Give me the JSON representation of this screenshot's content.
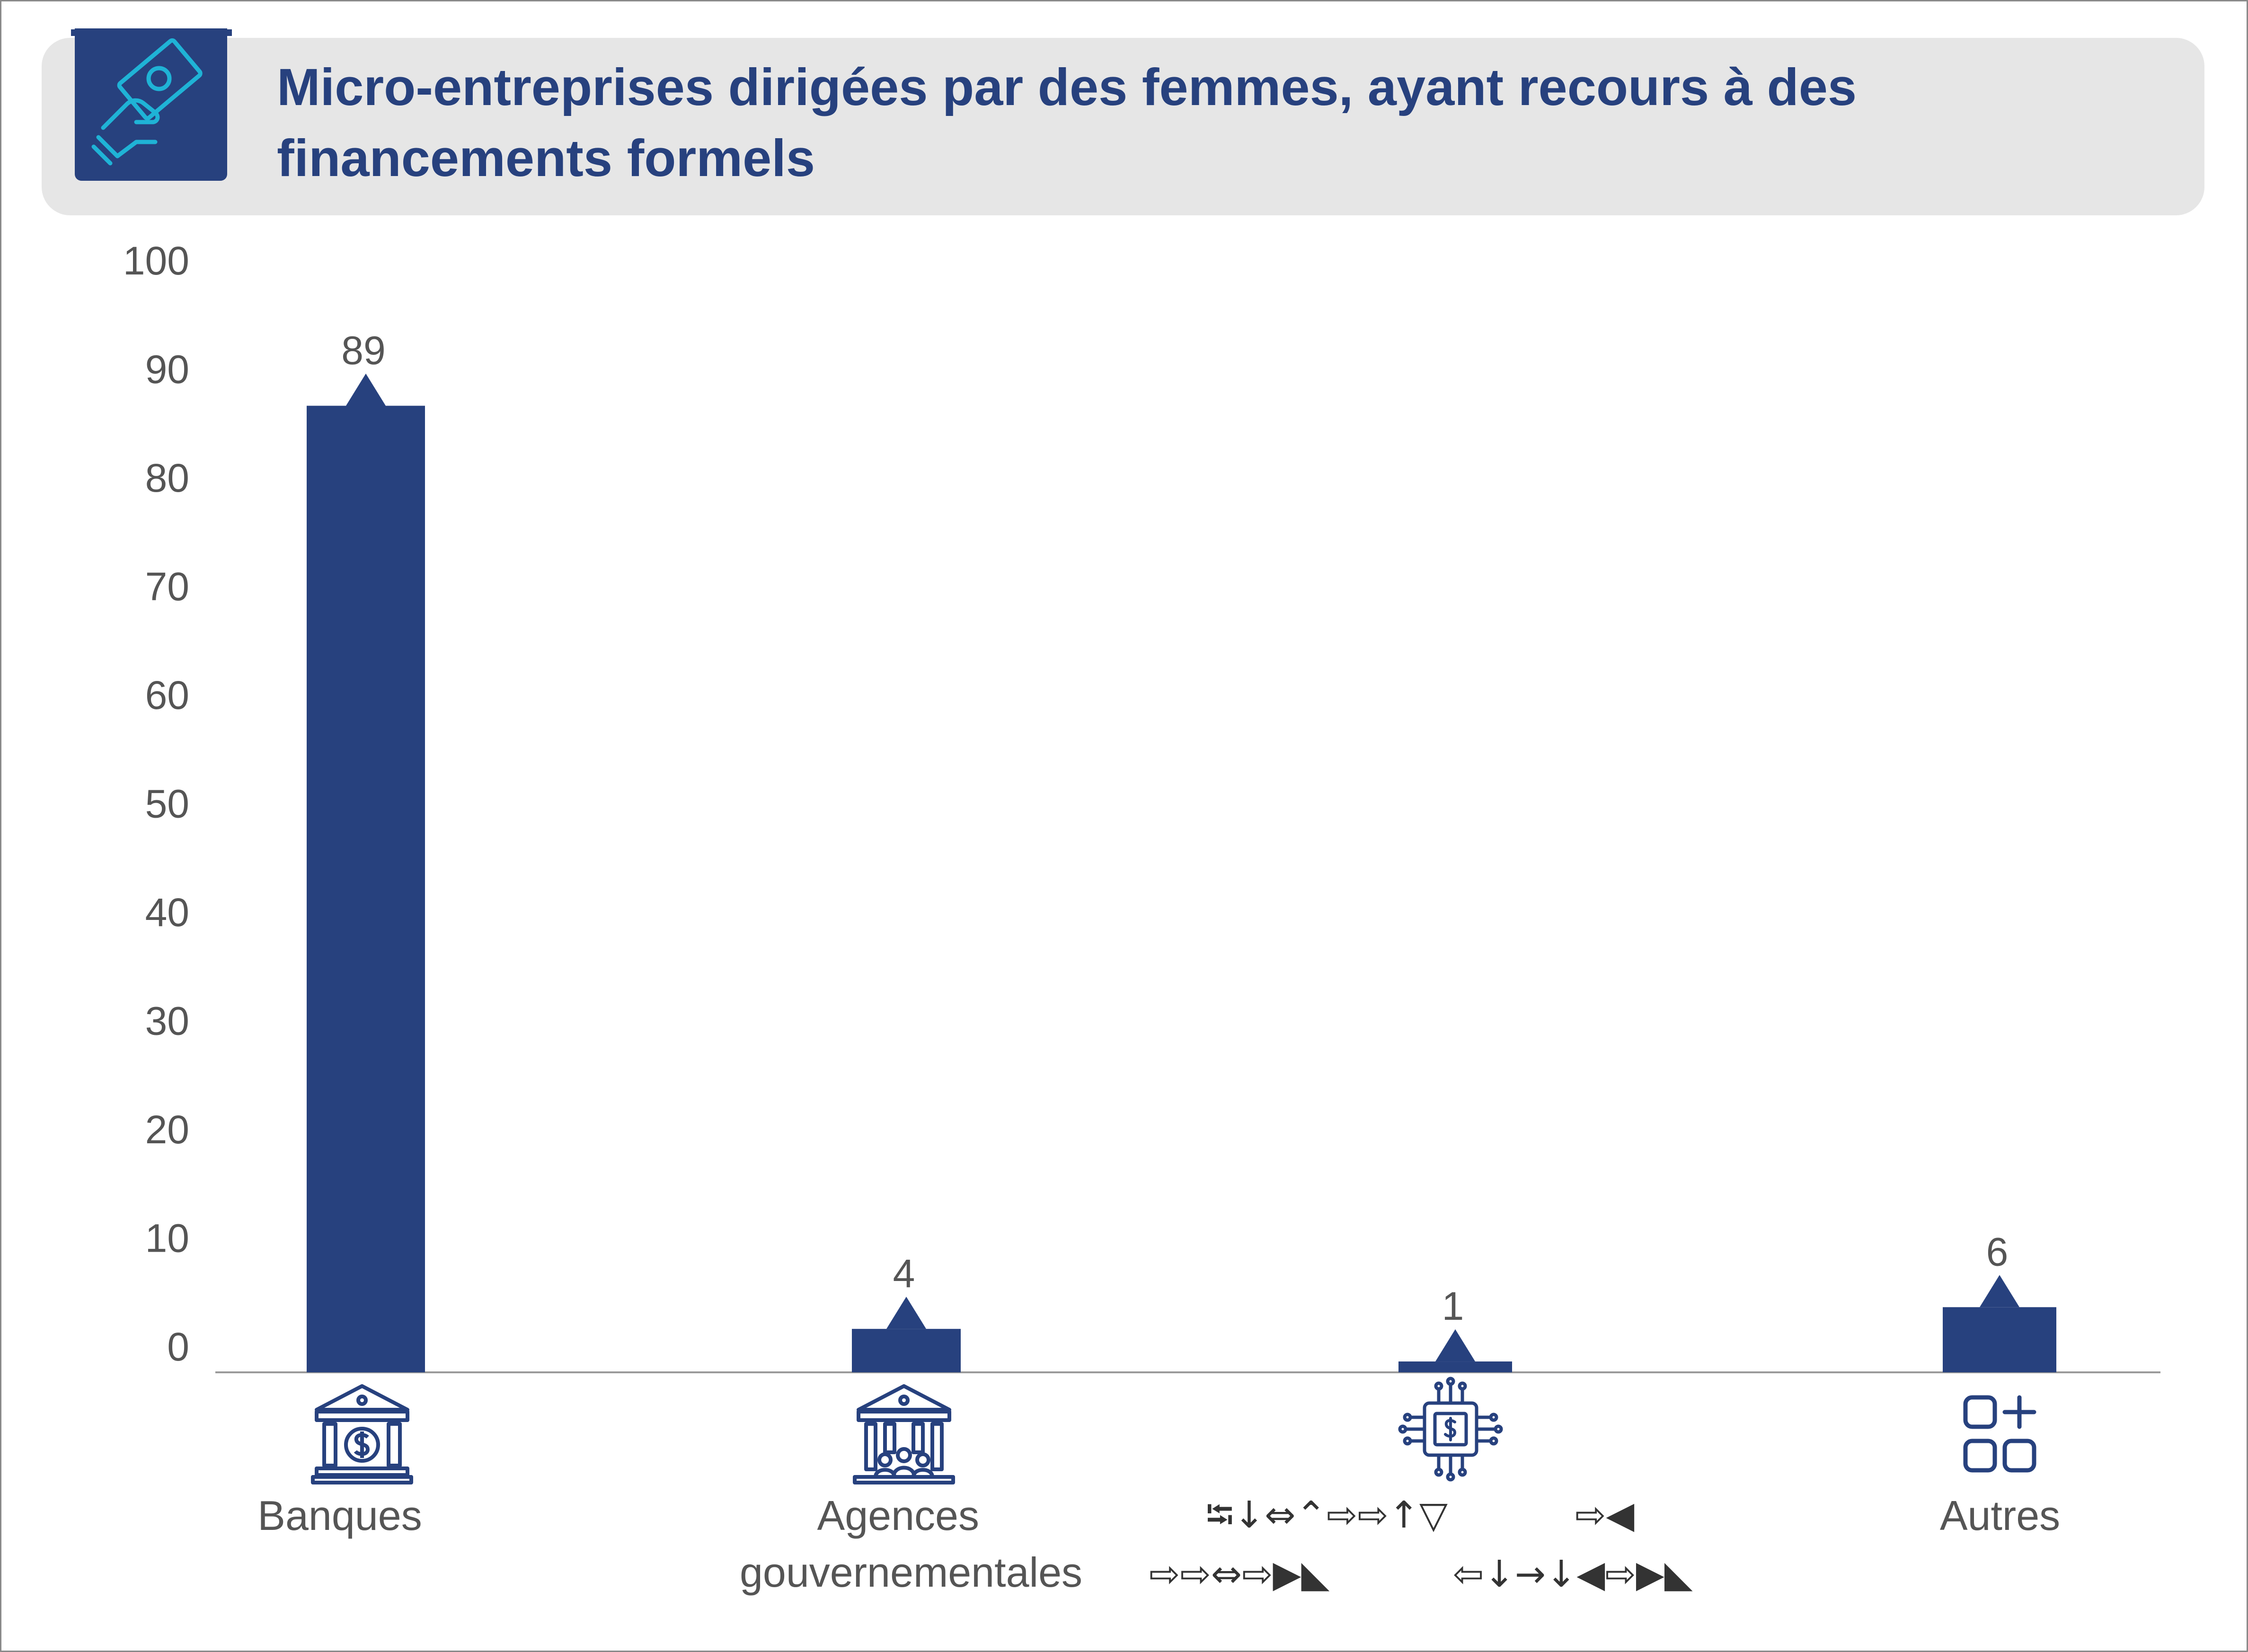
{
  "header": {
    "title": "Micro-entreprises dirigées par des femmes, ayant recours à des financements formels",
    "icon": "hand-money-icon"
  },
  "colors": {
    "bar": "#27417e",
    "header_bg": "#e6e6e6",
    "badge": "#27417e",
    "badge_icon": "#1fb3d6",
    "text": "#555555"
  },
  "chart_data": {
    "type": "bar",
    "title": "Micro-entreprises dirigées par des femmes, ayant recours à des financements formels",
    "categories": [
      "Banques",
      "Agences gouvernementales",
      "⭾↓⇔⌃⇨⇨↑▽ ⇨◀ ⇨⇨⇔⇨▶◣ ⇦↓→↓◀⇨▶◣",
      "Autres"
    ],
    "category_icons": [
      "bank-icon",
      "government-agency-icon",
      "digital-finance-chip-icon",
      "other-apps-icon"
    ],
    "values": [
      89,
      4,
      1,
      6
    ],
    "data_labels": [
      "89",
      "4",
      "1",
      "6"
    ],
    "yticks": [
      0,
      10,
      20,
      30,
      40,
      50,
      60,
      70,
      80,
      90,
      100
    ],
    "ylim": [
      0,
      100
    ],
    "grid": false,
    "legend": "none"
  }
}
